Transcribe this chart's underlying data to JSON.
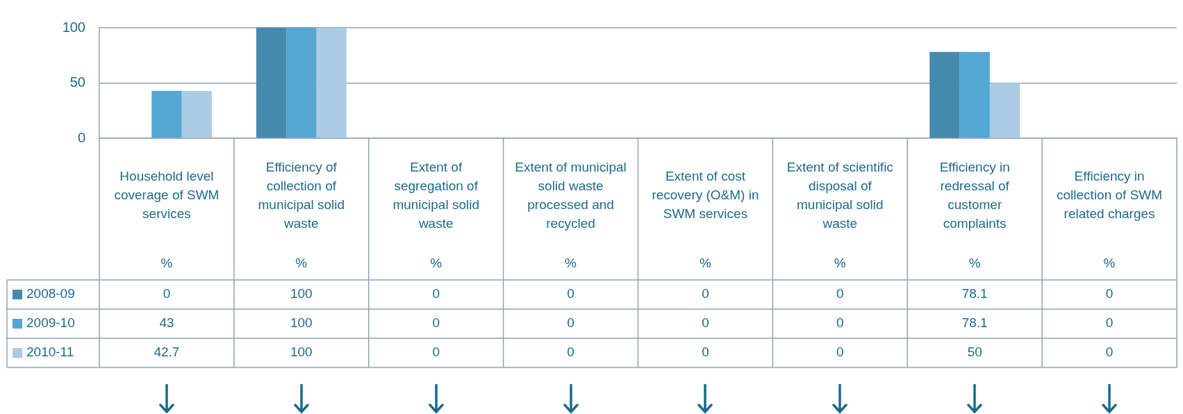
{
  "chart_data": {
    "type": "bar",
    "categories": [
      "Household level coverage of SWM services\n%",
      "Efficiency of collection of municipal solid waste\n%",
      "Extent of segregation of municipal solid waste\n%",
      "Extent of municipal solid waste processed and recycled\n%",
      "Extent of cost recovery (O&M) in SWM services\n%",
      "Extent of scientific disposal of municipal solid waste\n%",
      "Efficiency in redressal of customer complaints\n%",
      "Efficiency in collection of SWM related charges\n%"
    ],
    "series": [
      {
        "name": "2008-09",
        "color": "#4589ad",
        "values": [
          0,
          100,
          0,
          0,
          0,
          0,
          78.1,
          0
        ]
      },
      {
        "name": "2009-10",
        "color": "#55a7d4",
        "values": [
          43,
          100,
          0,
          0,
          0,
          0,
          78.1,
          0
        ]
      },
      {
        "name": "2010-11",
        "color": "#abcbe4",
        "values": [
          42.7,
          100,
          0,
          0,
          0,
          0,
          50,
          0
        ]
      }
    ],
    "ylim": [
      0,
      100
    ],
    "yticks": [
      0,
      50,
      100
    ],
    "grid": "y",
    "data_labels": true,
    "legend": "bottom left"
  }
}
